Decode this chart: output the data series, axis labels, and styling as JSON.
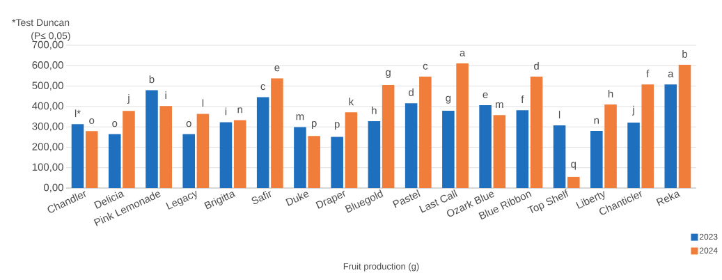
{
  "chart_data": {
    "type": "bar",
    "xlabel": "Fruit production (g)",
    "annotations": [
      "*Test Duncan",
      "(P≤ 0,05)"
    ],
    "categories": [
      "Chandler",
      "Delicia",
      "Pink Lemonade",
      "Legacy",
      "Brigitta",
      "Safir",
      "Duke",
      "Draper",
      "Bluegold",
      "Pastel",
      "Last Call",
      "Ozark Blue",
      "Blue Ribbon",
      "Top Shelf",
      "Liberty",
      "Chanticler",
      "Reka"
    ],
    "series": [
      {
        "name": "2023",
        "color": "#1f6fbf",
        "values": [
          313,
          265,
          480,
          265,
          323,
          446,
          299,
          251,
          328,
          416,
          379,
          406,
          382,
          307,
          280,
          321,
          508
        ],
        "value_labels": [
          "l*",
          "o",
          "b",
          "o",
          "i",
          "c",
          "m",
          "p",
          "h",
          "d",
          "g",
          "e",
          "f",
          "l",
          "n",
          "j",
          "a"
        ]
      },
      {
        "name": "2024",
        "color": "#f07d3a",
        "values": [
          279,
          378,
          402,
          364,
          333,
          538,
          255,
          371,
          505,
          546,
          611,
          358,
          546,
          55,
          410,
          508,
          604
        ],
        "value_labels": [
          "o",
          "j",
          "i",
          "l",
          "n",
          "e",
          "p",
          "k",
          "g",
          "c",
          "a",
          "m",
          "d",
          "q",
          "h",
          "f",
          "b"
        ]
      }
    ],
    "ylim": [
      0,
      700
    ],
    "yticks": [
      {
        "value": 0,
        "label": "0,00"
      },
      {
        "value": 100,
        "label": "100,00"
      },
      {
        "value": 200,
        "label": "200,00"
      },
      {
        "value": 300,
        "label": "300,00"
      },
      {
        "value": 400,
        "label": "400,00"
      },
      {
        "value": 500,
        "label": "500,00"
      },
      {
        "value": 600,
        "label": "600,00"
      },
      {
        "value": 700,
        "label": "700,00"
      }
    ],
    "grid": "y",
    "legend": "bottom right"
  }
}
